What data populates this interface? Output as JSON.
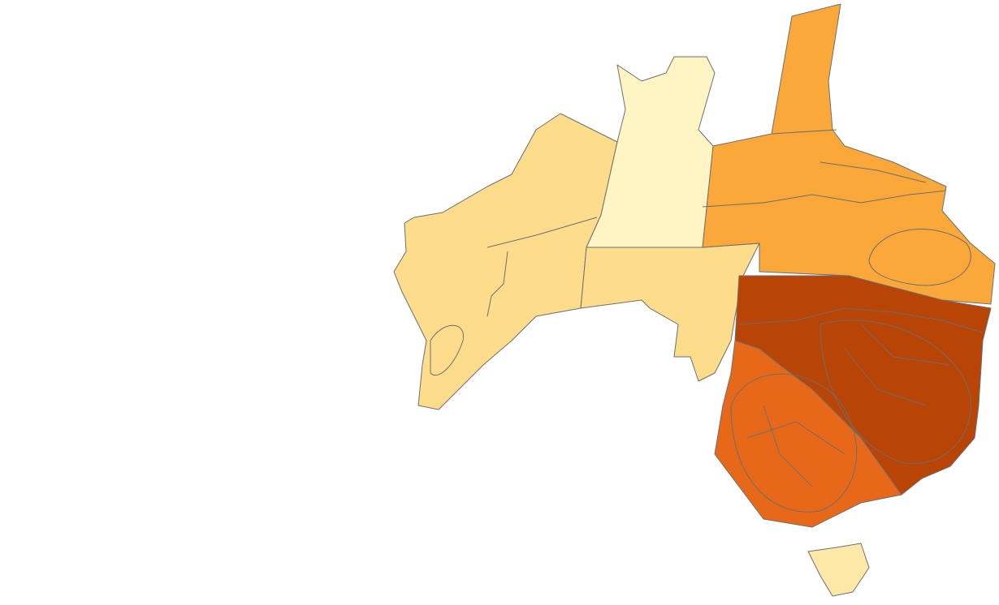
{
  "map": {
    "region_fills": [
      "#fddc8c",
      "#fff5c4",
      "#fddc8c",
      "#fba83b",
      "#b84405",
      "#e8681a",
      "#fee8a8"
    ]
  }
}
